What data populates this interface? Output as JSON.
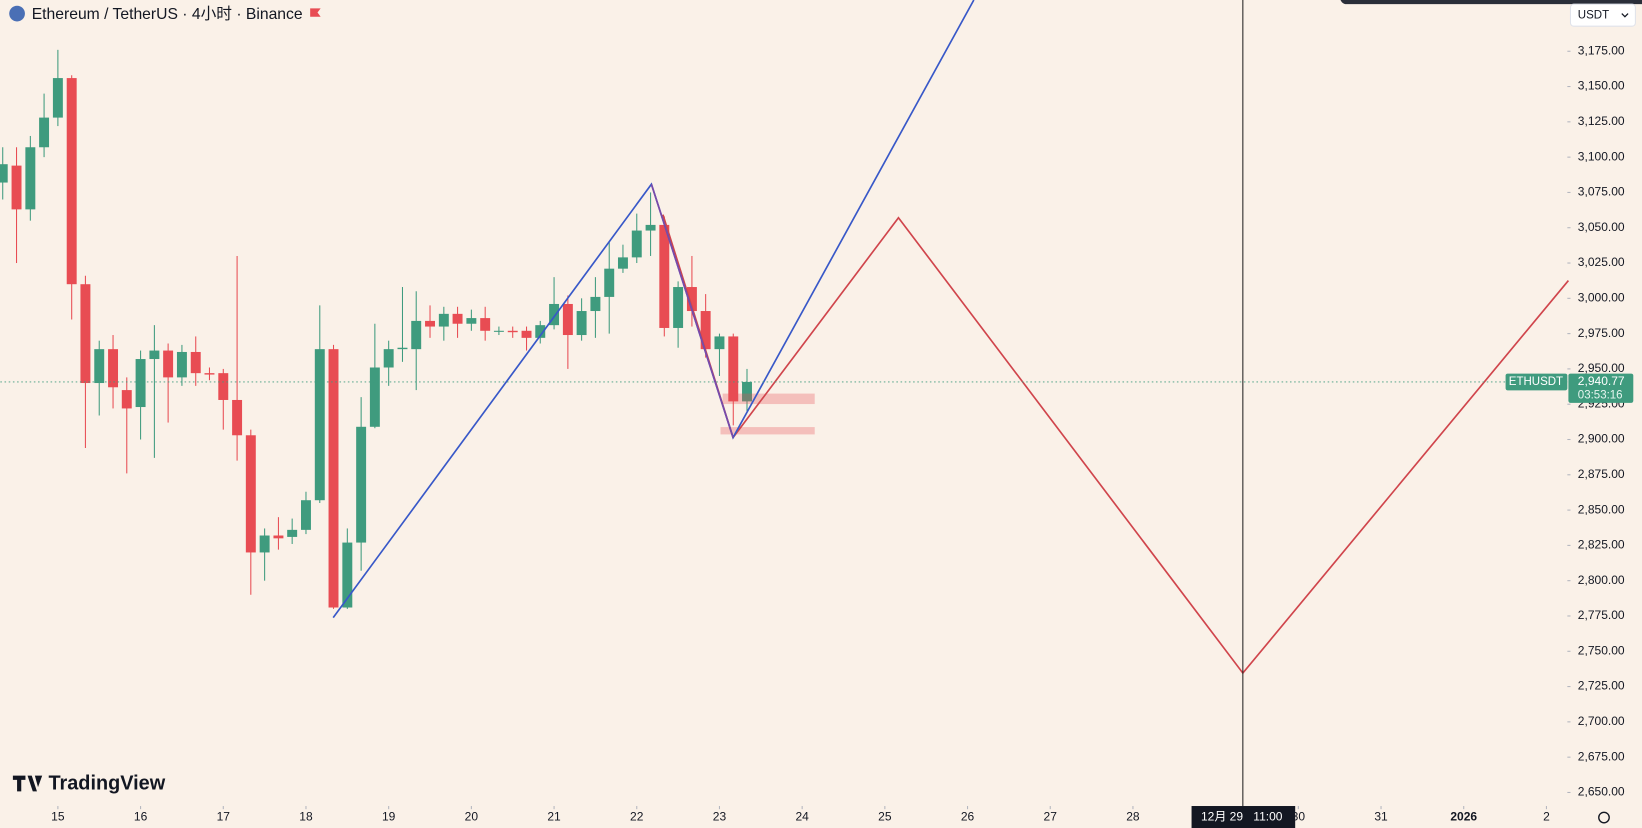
{
  "chart_data": {
    "type": "candlestick",
    "title": "Ethereum / TetherUS · 4小时 · Binance",
    "currency": "USDT",
    "symbol": "ETHUSDT",
    "last_label": "2,940.77",
    "countdown": "03:53:16",
    "crosshair_date": "12月 29",
    "crosshair_time": "11:00",
    "brand": "TradingView",
    "up_color": "#3f9b7e",
    "down_color": "#e84c53",
    "grid": false,
    "x": [
      -0.667,
      -0.5,
      -0.333,
      -0.167,
      0,
      0.167,
      0.333,
      0.5,
      0.667,
      0.833,
      1,
      1.167,
      1.333,
      1.5,
      1.667,
      1.833,
      2,
      2.167,
      2.333,
      2.5,
      2.667,
      2.833,
      3,
      3.167,
      3.333,
      3.5,
      3.667,
      3.833,
      4,
      4.167,
      4.333,
      4.5,
      4.667,
      4.833,
      5,
      5.167,
      5.333,
      5.5,
      5.667,
      5.833,
      6,
      6.167,
      6.333,
      6.5,
      6.667,
      6.833,
      7,
      7.167,
      7.333,
      7.5,
      7.667,
      7.833,
      8,
      8.167,
      8.333
    ],
    "open": [
      3082,
      3094,
      3063,
      3107,
      3128,
      3156,
      3010,
      2940,
      2964,
      2935,
      2923,
      2957,
      2963,
      2944,
      2962,
      2947,
      2947,
      2928,
      2903,
      2820,
      2832,
      2831,
      2836,
      2857,
      2964,
      2781,
      2827,
      2909,
      2951,
      2964,
      2964,
      2984,
      2980,
      2989,
      2982,
      2986,
      2977,
      2977,
      2977,
      2972,
      2981,
      2996,
      2974,
      2991,
      3001,
      3021,
      3029,
      3048,
      3052,
      2979,
      3008,
      2991,
      2964,
      2973,
      2927
    ],
    "high": [
      3107,
      3107,
      3115,
      3145,
      3176,
      3158,
      3016,
      2970,
      2974,
      2944,
      2963,
      2981,
      2968,
      2967,
      2973,
      2951,
      2950,
      3030,
      2907,
      2837,
      2845,
      2844,
      2863,
      2995,
      2967,
      2837,
      2930,
      2982,
      2970,
      3008,
      3005,
      2995,
      2994,
      2994,
      2992,
      2994,
      2980,
      2980,
      2980,
      2984,
      3015,
      3002,
      3000,
      3015,
      3040,
      3038,
      3060,
      3075,
      3058,
      3012,
      3030,
      3003,
      2975,
      2975,
      2950
    ],
    "low": [
      3070,
      3025,
      3055,
      3100,
      3122,
      2985,
      2894,
      2917,
      2922,
      2876,
      2900,
      2887,
      2912,
      2938,
      2938,
      2942,
      2907,
      2885,
      2790,
      2800,
      2822,
      2826,
      2833,
      2855,
      2780,
      2780,
      2807,
      2908,
      2938,
      2955,
      2935,
      2972,
      2970,
      2972,
      2977,
      2970,
      2974,
      2972,
      2963,
      2968,
      2978,
      2950,
      2970,
      2972,
      2975,
      3018,
      3025,
      3030,
      2973,
      2965,
      2980,
      2958,
      2945,
      2910,
      2920
    ],
    "close": [
      3095,
      3063,
      3107,
      3128,
      3156,
      3010,
      2940,
      2964,
      2937,
      2922,
      2957,
      2963,
      2944,
      2962,
      2947,
      2946,
      2928,
      2903,
      2820,
      2832,
      2830,
      2836,
      2857,
      2964,
      2781,
      2827,
      2909,
      2951,
      2964,
      2965,
      2984,
      2980,
      2989,
      2982,
      2986,
      2977,
      2977,
      2976,
      2972,
      2981,
      2996,
      2974,
      2991,
      3001,
      3021,
      3029,
      3048,
      3052,
      2979,
      3008,
      2991,
      2964,
      2973,
      2927,
      2940.77
    ],
    "xlim": [
      -0.696,
      18.253
    ],
    "xticks": [
      {
        "value": 0,
        "label": "15"
      },
      {
        "value": 1,
        "label": "16"
      },
      {
        "value": 2,
        "label": "17"
      },
      {
        "value": 3,
        "label": "18"
      },
      {
        "value": 4,
        "label": "19"
      },
      {
        "value": 5,
        "label": "20"
      },
      {
        "value": 6,
        "label": "21"
      },
      {
        "value": 7,
        "label": "22"
      },
      {
        "value": 8,
        "label": "23"
      },
      {
        "value": 9,
        "label": "24"
      },
      {
        "value": 10,
        "label": "25"
      },
      {
        "value": 11,
        "label": "26"
      },
      {
        "value": 12,
        "label": "27"
      },
      {
        "value": 13,
        "label": "28"
      },
      {
        "value": 15,
        "label": "30"
      },
      {
        "value": 16,
        "label": "31"
      },
      {
        "value": 17,
        "label": "2026"
      },
      {
        "value": 18,
        "label": "2"
      }
    ],
    "ylim": [
      2640.4,
      3211.3
    ],
    "yticks": [
      {
        "value": 2650,
        "label": "2,650.00"
      },
      {
        "value": 2675,
        "label": "2,675.00"
      },
      {
        "value": 2700,
        "label": "2,700.00"
      },
      {
        "value": 2725,
        "label": "2,725.00"
      },
      {
        "value": 2750,
        "label": "2,750.00"
      },
      {
        "value": 2775,
        "label": "2,775.00"
      },
      {
        "value": 2800,
        "label": "2,800.00"
      },
      {
        "value": 2825,
        "label": "2,825.00"
      },
      {
        "value": 2850,
        "label": "2,850.00"
      },
      {
        "value": 2875,
        "label": "2,875.00"
      },
      {
        "value": 2900,
        "label": "2,900.00"
      },
      {
        "value": 2925,
        "label": "2,925.00"
      },
      {
        "value": 2950,
        "label": "2,950.00"
      },
      {
        "value": 2975,
        "label": "2,975.00"
      },
      {
        "value": 3000,
        "label": "3,000.00"
      },
      {
        "value": 3025,
        "label": "3,025.00"
      },
      {
        "value": 3050,
        "label": "3,050.00"
      },
      {
        "value": 3075,
        "label": "3,075.00"
      },
      {
        "value": 3100,
        "label": "3,100.00"
      },
      {
        "value": 3125,
        "label": "3,125.00"
      },
      {
        "value": 3150,
        "label": "3,150.00"
      },
      {
        "value": 3175,
        "label": "3,175.00"
      }
    ]
  }
}
